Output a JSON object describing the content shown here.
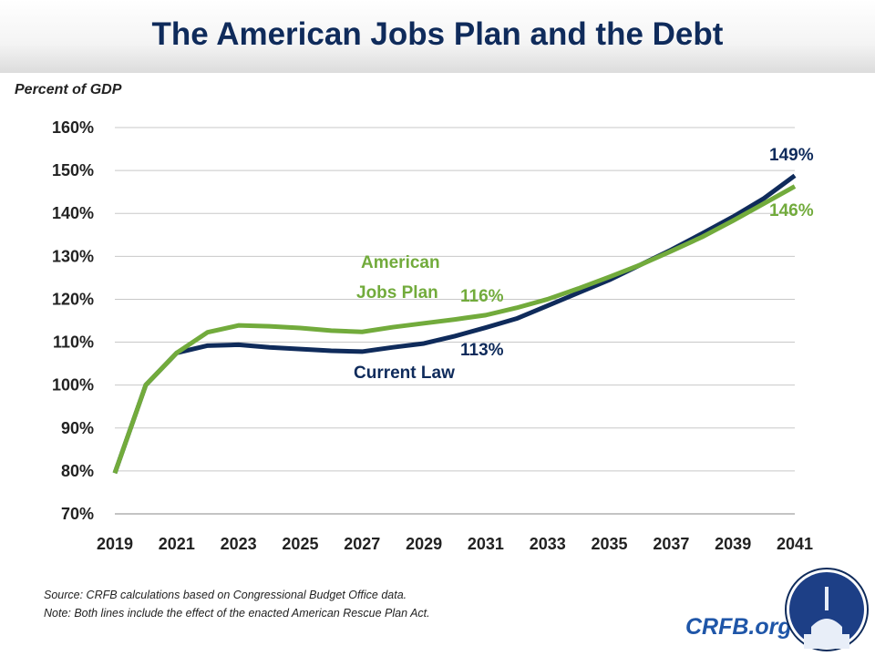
{
  "title": "The American Jobs Plan and the Debt",
  "source": "Source: CRFB calculations based on Congressional Budget Office data.",
  "note": "Note: Both lines include the effect of the enacted American Rescue Plan Act.",
  "brand": "CRFB.org",
  "colors": {
    "current_law": "#0f2b5b",
    "jobs_plan": "#72ab3c",
    "grid": "#c8c8c8"
  },
  "chart_data": {
    "type": "line",
    "ylabel": "Percent of GDP",
    "ylim": [
      70,
      160
    ],
    "yticks": [
      "70%",
      "80%",
      "90%",
      "100%",
      "110%",
      "120%",
      "130%",
      "140%",
      "150%",
      "160%"
    ],
    "xticks": [
      "2019",
      "2021",
      "2023",
      "2025",
      "2027",
      "2029",
      "2031",
      "2033",
      "2035",
      "2037",
      "2039",
      "2041"
    ],
    "grid": "horizontal",
    "x": [
      2019,
      2020,
      2021,
      2022,
      2023,
      2024,
      2025,
      2026,
      2027,
      2028,
      2029,
      2030,
      2031,
      2032,
      2033,
      2034,
      2035,
      2036,
      2037,
      2038,
      2039,
      2040,
      2041
    ],
    "series": [
      {
        "name": "Current Law",
        "values": [
          79.5,
          100,
          107.5,
          109.2,
          109.4,
          108.8,
          108.4,
          108,
          107.8,
          108.8,
          109.7,
          111.4,
          113.4,
          115.5,
          118.5,
          121.5,
          124.5,
          128,
          131.5,
          135.3,
          139.2,
          143.5,
          148.8
        ]
      },
      {
        "name": "American Jobs Plan",
        "values": [
          79.5,
          100,
          107.5,
          112.3,
          113.9,
          113.7,
          113.3,
          112.7,
          112.4,
          113.5,
          114.4,
          115.3,
          116.3,
          118,
          120,
          122.5,
          125.2,
          128,
          131.2,
          134.5,
          138.3,
          142.3,
          146.3
        ]
      }
    ],
    "annotations": {
      "current_law_name": "Current Law",
      "jobs_plan_name_1": "American",
      "jobs_plan_name_2": "Jobs Plan",
      "cl_2031": "113%",
      "ajp_2031": "116%",
      "cl_2041": "149%",
      "ajp_2041": "146%"
    }
  }
}
